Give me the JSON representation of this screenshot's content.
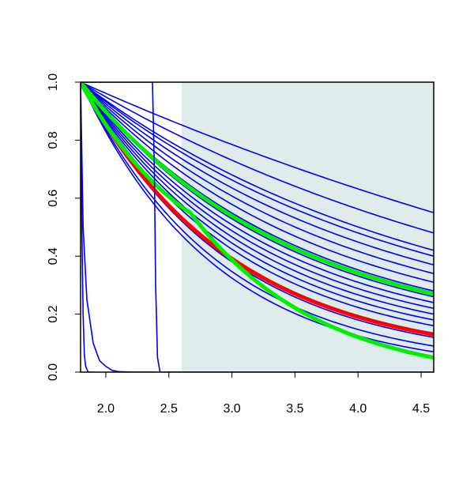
{
  "chart_data": {
    "type": "line",
    "title": "",
    "xlabel": "",
    "ylabel": "",
    "xlim": [
      1.8,
      4.6
    ],
    "ylim": [
      0.0,
      1.0
    ],
    "grid": false,
    "legend": "none",
    "x_ticks": [
      "2.0",
      "2.5",
      "3.0",
      "3.5",
      "4.0",
      "4.5"
    ],
    "y_ticks": [
      "0.0",
      "0.2",
      "0.4",
      "0.6",
      "0.8",
      "1.0"
    ],
    "shaded_region": {
      "x": [
        2.6,
        4.6
      ],
      "color": "#dfeceb"
    },
    "colors": {
      "thin": "#0000ee",
      "red": "#ff0000",
      "green": "#00ee00"
    },
    "series": [
      {
        "kind": "thin",
        "x": [
          1.8,
          4.6
        ],
        "y": [
          1.0,
          0.55
        ]
      },
      {
        "kind": "thin",
        "x": [
          1.8,
          4.6
        ],
        "y": [
          1.0,
          0.48
        ]
      },
      {
        "kind": "thin",
        "x": [
          1.8,
          4.6
        ],
        "y": [
          1.0,
          0.42
        ]
      },
      {
        "kind": "thin",
        "x": [
          1.8,
          4.6
        ],
        "y": [
          1.0,
          0.4
        ]
      },
      {
        "kind": "thin",
        "x": [
          1.8,
          4.6
        ],
        "y": [
          1.0,
          0.37
        ]
      },
      {
        "kind": "thin",
        "x": [
          1.8,
          4.6
        ],
        "y": [
          1.0,
          0.34
        ]
      },
      {
        "kind": "thin",
        "x": [
          1.8,
          4.6
        ],
        "y": [
          1.0,
          0.31
        ]
      },
      {
        "kind": "thin",
        "x": [
          1.8,
          4.6
        ],
        "y": [
          1.0,
          0.28
        ]
      },
      {
        "kind": "thin",
        "x": [
          1.8,
          4.6
        ],
        "y": [
          1.0,
          0.26
        ]
      },
      {
        "kind": "thin",
        "x": [
          1.8,
          4.6
        ],
        "y": [
          1.0,
          0.24
        ]
      },
      {
        "kind": "thin",
        "x": [
          1.8,
          4.6
        ],
        "y": [
          1.0,
          0.22
        ]
      },
      {
        "kind": "thin",
        "x": [
          1.8,
          4.6
        ],
        "y": [
          1.0,
          0.2
        ]
      },
      {
        "kind": "thin",
        "x": [
          1.8,
          4.6
        ],
        "y": [
          1.0,
          0.18
        ]
      },
      {
        "kind": "thin",
        "x": [
          1.8,
          4.6
        ],
        "y": [
          1.0,
          0.16
        ]
      },
      {
        "kind": "thin",
        "x": [
          1.8,
          4.6
        ],
        "y": [
          1.0,
          0.12
        ]
      },
      {
        "kind": "thin",
        "x": [
          1.8,
          4.6
        ],
        "y": [
          1.0,
          0.09
        ]
      },
      {
        "kind": "thin",
        "x": [
          1.8,
          4.6
        ],
        "y": [
          1.0,
          0.07
        ]
      },
      {
        "kind": "green",
        "x": [
          1.8,
          4.6
        ],
        "y": [
          1.0,
          0.27
        ]
      },
      {
        "kind": "red",
        "x": [
          1.8,
          4.6
        ],
        "y": [
          1.0,
          0.13
        ]
      },
      {
        "kind": "green",
        "x": [
          1.8,
          2.6,
          2.67,
          4.6
        ],
        "y": [
          1.0,
          0.57,
          0.55,
          0.05
        ]
      },
      {
        "kind": "thin",
        "x": [
          1.8,
          1.81,
          1.82,
          1.83,
          1.84,
          1.86,
          1.9
        ],
        "y": [
          1.0,
          0.5,
          0.2,
          0.06,
          0.02,
          0.0,
          0.0
        ]
      },
      {
        "kind": "thin",
        "x": [
          1.8,
          1.82,
          1.85,
          1.9,
          1.95,
          2.0,
          2.05,
          2.1,
          2.2,
          2.4
        ],
        "y": [
          1.0,
          0.5,
          0.25,
          0.1,
          0.04,
          0.02,
          0.006,
          0.002,
          0.0,
          0.0
        ]
      },
      {
        "kind": "thin",
        "x": [
          1.8,
          2.35,
          2.37,
          2.385,
          2.395,
          2.41,
          2.43,
          4.6
        ],
        "y": [
          1.0,
          1.0,
          1.0,
          0.7,
          0.3,
          0.05,
          0.0,
          0.0
        ]
      }
    ]
  }
}
